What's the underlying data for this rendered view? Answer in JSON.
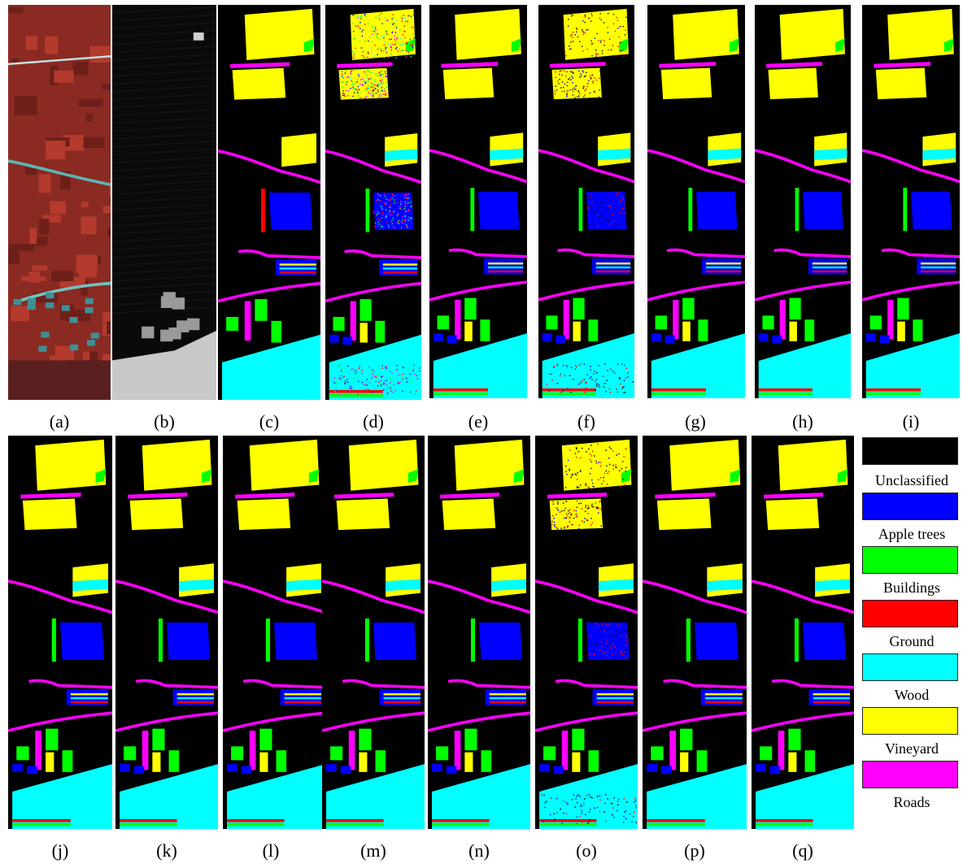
{
  "panels": [
    {
      "id": "a",
      "caption": "(a)",
      "kind": "rgb"
    },
    {
      "id": "b",
      "caption": "(b)",
      "kind": "lidar"
    },
    {
      "id": "c",
      "caption": "(c)",
      "kind": "gt"
    },
    {
      "id": "d",
      "caption": "(d)",
      "kind": "noisy"
    },
    {
      "id": "e",
      "caption": "(e)",
      "kind": "map"
    },
    {
      "id": "f",
      "caption": "(f)",
      "kind": "speckled"
    },
    {
      "id": "g",
      "caption": "(g)",
      "kind": "map"
    },
    {
      "id": "h",
      "caption": "(h)",
      "kind": "map"
    },
    {
      "id": "i",
      "caption": "(i)",
      "kind": "map"
    },
    {
      "id": "j",
      "caption": "(j)",
      "kind": "map"
    },
    {
      "id": "k",
      "caption": "(k)",
      "kind": "map"
    },
    {
      "id": "l",
      "caption": "(l)",
      "kind": "map"
    },
    {
      "id": "m",
      "caption": "(m)",
      "kind": "map"
    },
    {
      "id": "n",
      "caption": "(n)",
      "kind": "map"
    },
    {
      "id": "o",
      "caption": "(o)",
      "kind": "speckled"
    },
    {
      "id": "p",
      "caption": "(p)",
      "kind": "map"
    },
    {
      "id": "q",
      "caption": "(q)",
      "kind": "map"
    }
  ],
  "legend": [
    {
      "label": "Unclassified",
      "color": "#000000"
    },
    {
      "label": "Apple trees",
      "color": "#0000ff"
    },
    {
      "label": "Buildings",
      "color": "#00ff00"
    },
    {
      "label": "Ground",
      "color": "#ff0000"
    },
    {
      "label": "Wood",
      "color": "#00ffff"
    },
    {
      "label": "Vineyard",
      "color": "#ffff00"
    },
    {
      "label": "Roads",
      "color": "#ff00ff"
    }
  ]
}
